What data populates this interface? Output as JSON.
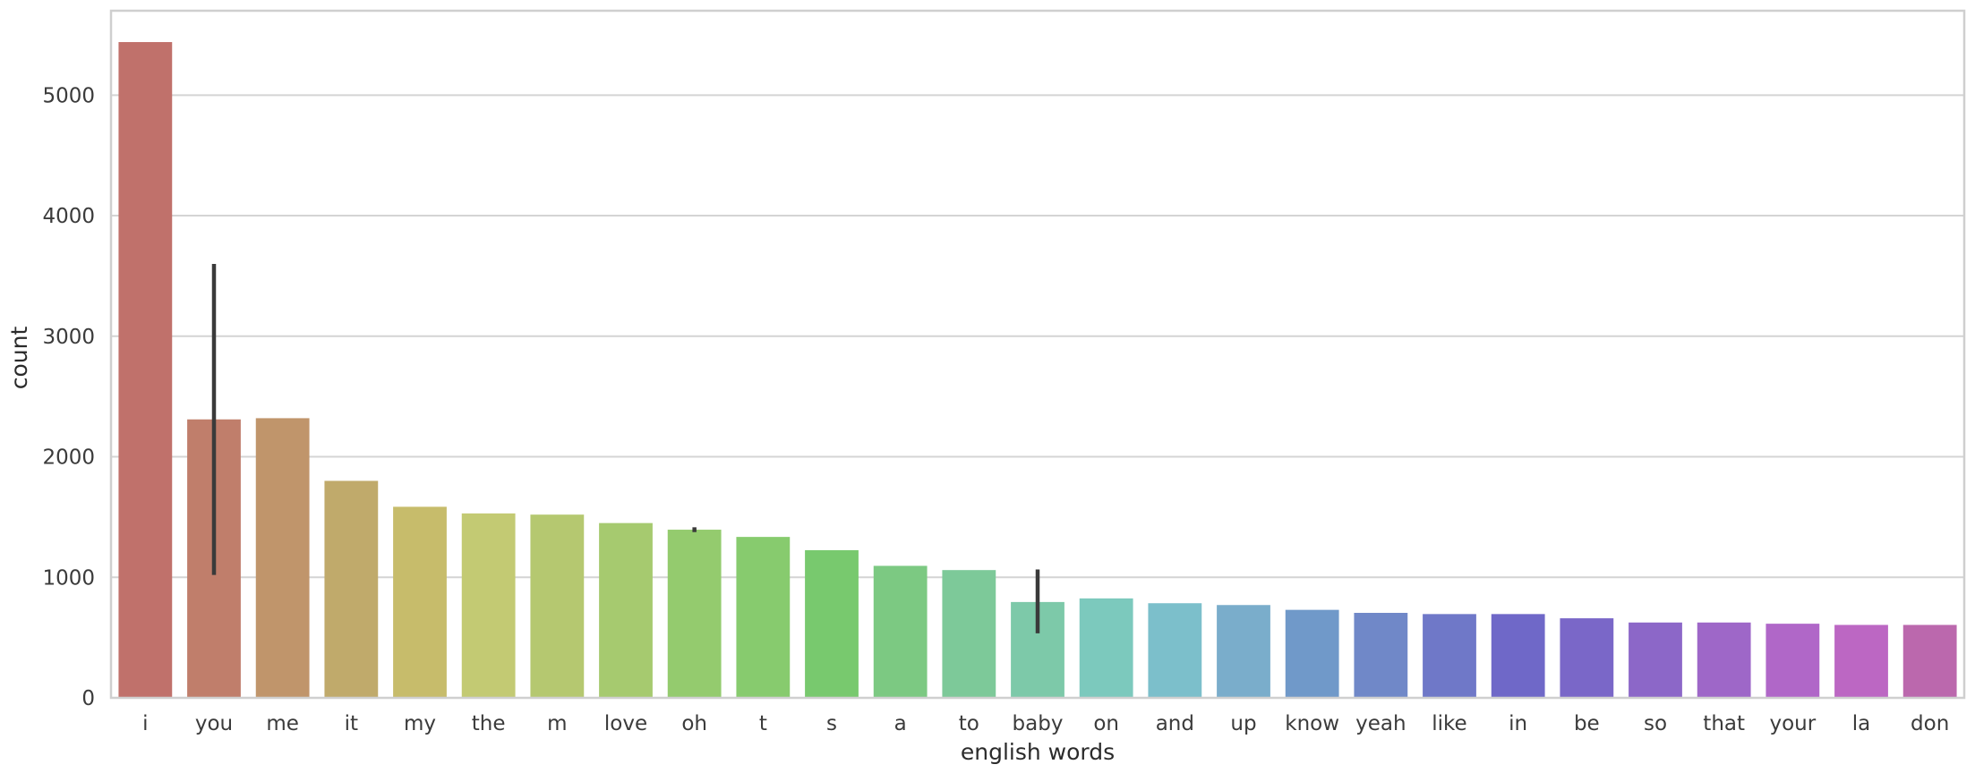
{
  "chart_data": {
    "type": "bar",
    "title": "",
    "xlabel": "english words",
    "ylabel": "count",
    "ylim": [
      0,
      5700
    ],
    "yticks": [
      0,
      1000,
      2000,
      3000,
      4000,
      5000
    ],
    "grid": "horizontal",
    "categories": [
      "i",
      "you",
      "me",
      "it",
      "my",
      "the",
      "m",
      "love",
      "oh",
      "t",
      "s",
      "a",
      "to",
      "baby",
      "on",
      "and",
      "up",
      "know",
      "yeah",
      "like",
      "in",
      "be",
      "so",
      "that",
      "your",
      "la",
      "don"
    ],
    "values": [
      5440,
      2310,
      2320,
      1800,
      1585,
      1530,
      1520,
      1450,
      1395,
      1335,
      1225,
      1095,
      1060,
      795,
      825,
      785,
      770,
      730,
      705,
      695,
      695,
      660,
      625,
      625,
      615,
      605,
      605
    ],
    "error_bars": [
      {
        "category": "you",
        "low": 1020,
        "high": 3600
      },
      {
        "category": "oh",
        "low": 1375,
        "high": 1415
      },
      {
        "category": "baby",
        "low": 535,
        "high": 1065
      }
    ],
    "colors": [
      "#c0716b",
      "#c07e6b",
      "#c0956b",
      "#c0aa6b",
      "#c7bc6b",
      "#c3ca73",
      "#b5c870",
      "#a6ca6f",
      "#94cb6e",
      "#87cb6e",
      "#78c96e",
      "#7cc982",
      "#7dc999",
      "#7dc9a9",
      "#7cc9bd",
      "#7cbfcb",
      "#7aadcb",
      "#7099c9",
      "#7088c8",
      "#6f78c8",
      "#6f68c8",
      "#7a67c8",
      "#8c67c8",
      "#9e67c8",
      "#b067c8",
      "#bc67c3",
      "#bb68ad"
    ],
    "errorbar_color": "#3a3a3a",
    "grid_color": "#d4d4d4",
    "frame_color": "#cfcfcf"
  }
}
